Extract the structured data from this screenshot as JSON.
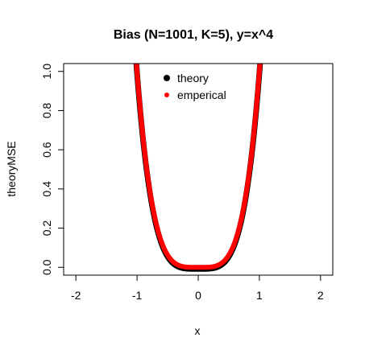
{
  "chart_data": {
    "type": "scatter",
    "title": "Bias (N=1001, K=5), y=x^4",
    "xlabel": "x",
    "ylabel": "theoryMSE",
    "xlim": [
      -2.2,
      2.2
    ],
    "ylim": [
      -0.04,
      1.04
    ],
    "x_ticks": [
      -2,
      -1,
      0,
      1,
      2
    ],
    "y_ticks": [
      0.0,
      0.2,
      0.4,
      0.6,
      0.8,
      1.0
    ],
    "x_tick_labels": [
      "-2",
      "-1",
      "0",
      "1",
      "2"
    ],
    "y_tick_labels": [
      "0.0",
      "0.2",
      "0.4",
      "0.6",
      "0.8",
      "1.0"
    ],
    "x_range": [
      -2,
      2
    ],
    "n_points": 1001,
    "legend_position": "top-center",
    "grid": false,
    "series": [
      {
        "name": "theory",
        "function": "x^4",
        "color": "#000000"
      },
      {
        "name": "emperical",
        "function": "x^4",
        "color": "#ff0000"
      }
    ]
  }
}
